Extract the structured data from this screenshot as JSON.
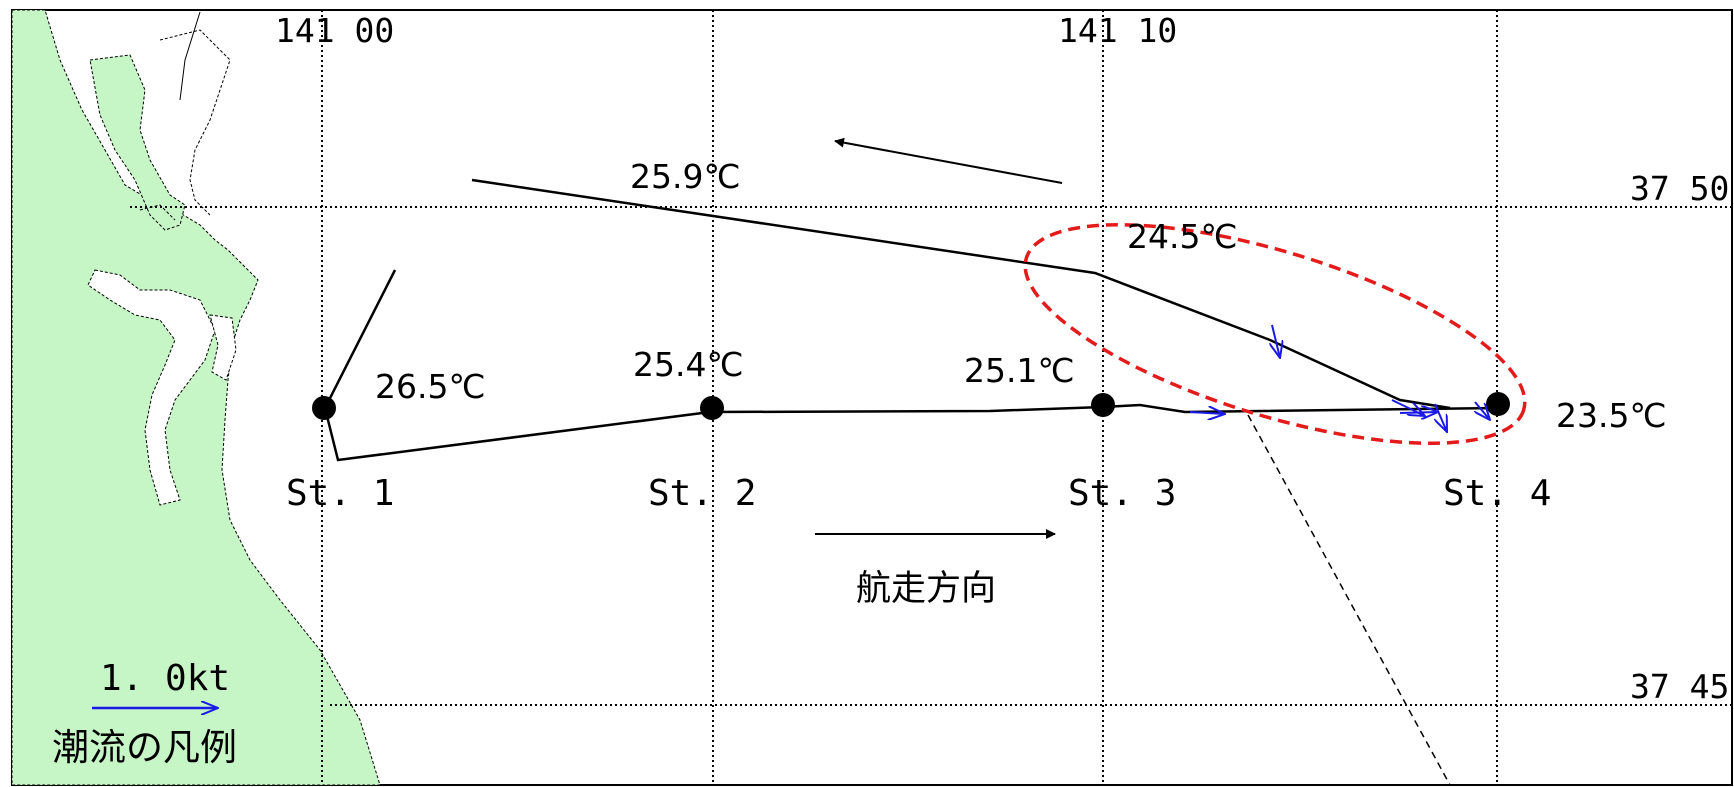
{
  "map": {
    "colors": {
      "land": "#c6f5c6",
      "track": "#000000",
      "current_arrow": "#1a1ae6",
      "highlight": "#e31b1b",
      "grid": "#000000"
    },
    "longitude_labels": [
      "141 00",
      "141 10"
    ],
    "latitude_labels": [
      "37 50",
      "37 45"
    ],
    "stations": [
      {
        "label": "St. 1",
        "temperature": "26.5℃"
      },
      {
        "label": "St. 2",
        "temperature": "25.4℃"
      },
      {
        "label": "St. 3",
        "temperature": "25.1℃"
      },
      {
        "label": "St. 4",
        "temperature": "23.5℃"
      }
    ],
    "return_track_temperatures": [
      "25.9℃",
      "24.5℃"
    ],
    "direction_label": "航走方向",
    "legend": {
      "scale_label": "1. 0kt",
      "caption": "潮流の凡例"
    }
  }
}
